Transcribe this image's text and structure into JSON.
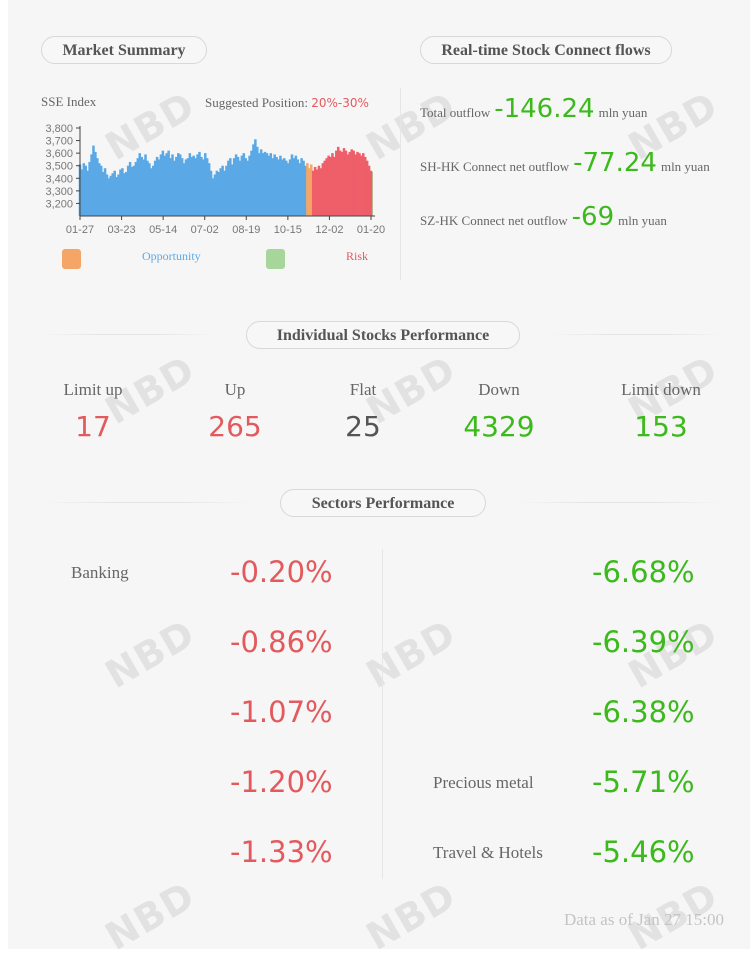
{
  "market_summary": {
    "title": "Market Summary",
    "index_label": "SSE Index",
    "suggested_label": "Suggested Position:",
    "suggested_value": "20%-30%",
    "legend_opportunity": "Opportunity",
    "legend_risk": "Risk"
  },
  "flows": {
    "title": "Real-time Stock Connect flows",
    "rows": [
      {
        "label": "Total outflow",
        "value": "-146.24",
        "unit": "mln yuan"
      },
      {
        "label": "SH-HK Connect net outflow",
        "value": "-77.24",
        "unit": "mln yuan"
      },
      {
        "label": "SZ-HK Connect net outflow",
        "value": "-69",
        "unit": "mln yuan"
      }
    ]
  },
  "stocks": {
    "title": "Individual Stocks Performance",
    "items": [
      {
        "label": "Limit up",
        "value": "17"
      },
      {
        "label": "Up",
        "value": "265"
      },
      {
        "label": "Flat",
        "value": "25"
      },
      {
        "label": "Down",
        "value": "4329"
      },
      {
        "label": "Limit down",
        "value": "153"
      }
    ]
  },
  "sectors": {
    "title": "Sectors Performance",
    "left": [
      {
        "name": "Banking",
        "value": "-0.20%"
      },
      {
        "name": "",
        "value": "-0.86%"
      },
      {
        "name": "",
        "value": "-1.07%"
      },
      {
        "name": "",
        "value": "-1.20%"
      },
      {
        "name": "",
        "value": "-1.33%"
      }
    ],
    "right": [
      {
        "name": "",
        "value": "-6.68%"
      },
      {
        "name": "",
        "value": "-6.39%"
      },
      {
        "name": "",
        "value": "-6.38%"
      },
      {
        "name": "Precious metal",
        "value": "-5.71%"
      },
      {
        "name": "Travel & Hotels",
        "value": "-5.46%"
      }
    ]
  },
  "footer": {
    "data_as_of": "Data as of Jan 27 15:00"
  },
  "watermark": {
    "text": "NBD"
  },
  "colors": {
    "area": "#5aa9e6",
    "risk": "#ee5f6a",
    "opportunity": "#f5a667",
    "green_band": "#a6d69a",
    "red_text": "#e35a5e",
    "green_text": "#3cb91c"
  },
  "chart_data": {
    "type": "area",
    "title": "SSE Index",
    "x_ticks": [
      "01-27",
      "03-23",
      "05-14",
      "07-02",
      "08-19",
      "10-15",
      "12-02",
      "01-20"
    ],
    "y_ticks": [
      "3,800",
      "3,700",
      "3,600",
      "3,500",
      "3,400",
      "3,300",
      "3,200"
    ],
    "ylim": [
      3100,
      3800
    ],
    "values": [
      3510,
      3470,
      3520,
      3500,
      3460,
      3530,
      3590,
      3660,
      3610,
      3560,
      3520,
      3500,
      3450,
      3480,
      3430,
      3400,
      3420,
      3440,
      3460,
      3410,
      3430,
      3470,
      3480,
      3440,
      3450,
      3500,
      3530,
      3490,
      3500,
      3530,
      3560,
      3600,
      3570,
      3550,
      3590,
      3540,
      3520,
      3480,
      3500,
      3540,
      3570,
      3550,
      3590,
      3620,
      3580,
      3600,
      3620,
      3560,
      3590,
      3540,
      3570,
      3600,
      3590,
      3560,
      3520,
      3550,
      3560,
      3600,
      3570,
      3580,
      3560,
      3590,
      3610,
      3570,
      3550,
      3600,
      3560,
      3520,
      3460,
      3400,
      3430,
      3460,
      3450,
      3480,
      3500,
      3460,
      3500,
      3540,
      3560,
      3510,
      3560,
      3590,
      3570,
      3540,
      3580,
      3600,
      3560,
      3540,
      3580,
      3620,
      3670,
      3710,
      3650,
      3600,
      3630,
      3600,
      3610,
      3600,
      3580,
      3600,
      3560,
      3590,
      3570,
      3550,
      3580,
      3550,
      3560,
      3540,
      3520,
      3550,
      3590,
      3560,
      3580,
      3550,
      3520,
      3560,
      3540,
      3500,
      3520,
      3480,
      3510,
      3460,
      3490,
      3470,
      3500,
      3480,
      3520,
      3540,
      3560,
      3580,
      3570,
      3600,
      3570,
      3620,
      3650,
      3620,
      3610,
      3640,
      3620,
      3590,
      3610,
      3630,
      3620,
      3590,
      3610,
      3600,
      3580,
      3600,
      3570,
      3540,
      3500,
      3460
    ],
    "risk_from": 121,
    "opportunity_band": [
      118,
      121
    ],
    "green_band_from": 147
  }
}
